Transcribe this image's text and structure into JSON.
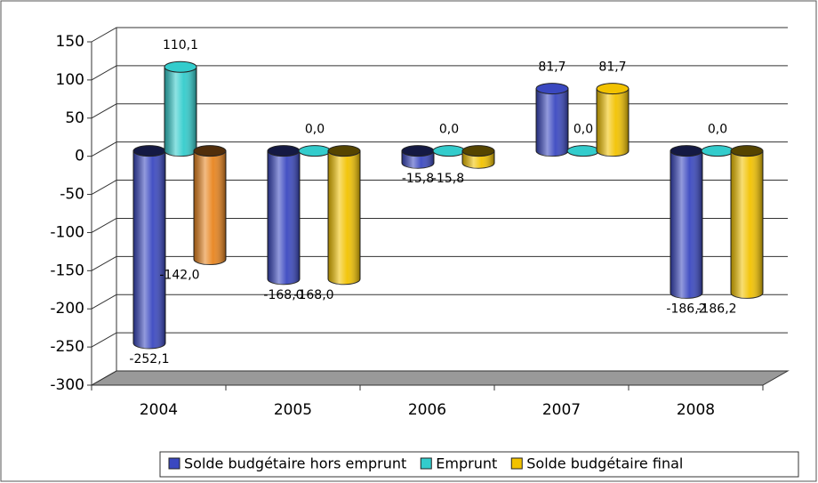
{
  "chart_data": {
    "type": "bar3d",
    "categories": [
      "2004",
      "2005",
      "2006",
      "2007",
      "2008"
    ],
    "series": [
      {
        "name": "Solde budgétaire hors emprunt",
        "color": "#3a48c0",
        "values": [
          -252.1,
          -168.0,
          -15.8,
          81.7,
          -186.2
        ],
        "value_labels": [
          "-252,1",
          "-168,0",
          "-15,8",
          "81,7",
          "-186,2"
        ]
      },
      {
        "name": "Emprunt",
        "color": "#33cccc",
        "values": [
          110.1,
          0.0,
          0.0,
          0.0,
          0.0
        ],
        "value_labels": [
          "110,1",
          "0,0",
          "0,0",
          "0,0",
          "0,0"
        ]
      },
      {
        "name": "Solde budgétaire final",
        "color": "#f2c200",
        "colors": [
          "#e8841e",
          "#f2c200",
          "#f2c200",
          "#f2c200",
          "#f2c200"
        ],
        "values": [
          -142.0,
          -168.0,
          -15.8,
          81.7,
          -186.2
        ],
        "value_labels": [
          "-142,0",
          "-168,0",
          "-15,8",
          "81,7",
          "-186,2"
        ]
      }
    ],
    "ylim": [
      -300,
      150
    ],
    "yticks": [
      -300,
      -250,
      -200,
      -150,
      -100,
      -50,
      0,
      50,
      100,
      150
    ],
    "grid": true,
    "legend": "bottom"
  }
}
